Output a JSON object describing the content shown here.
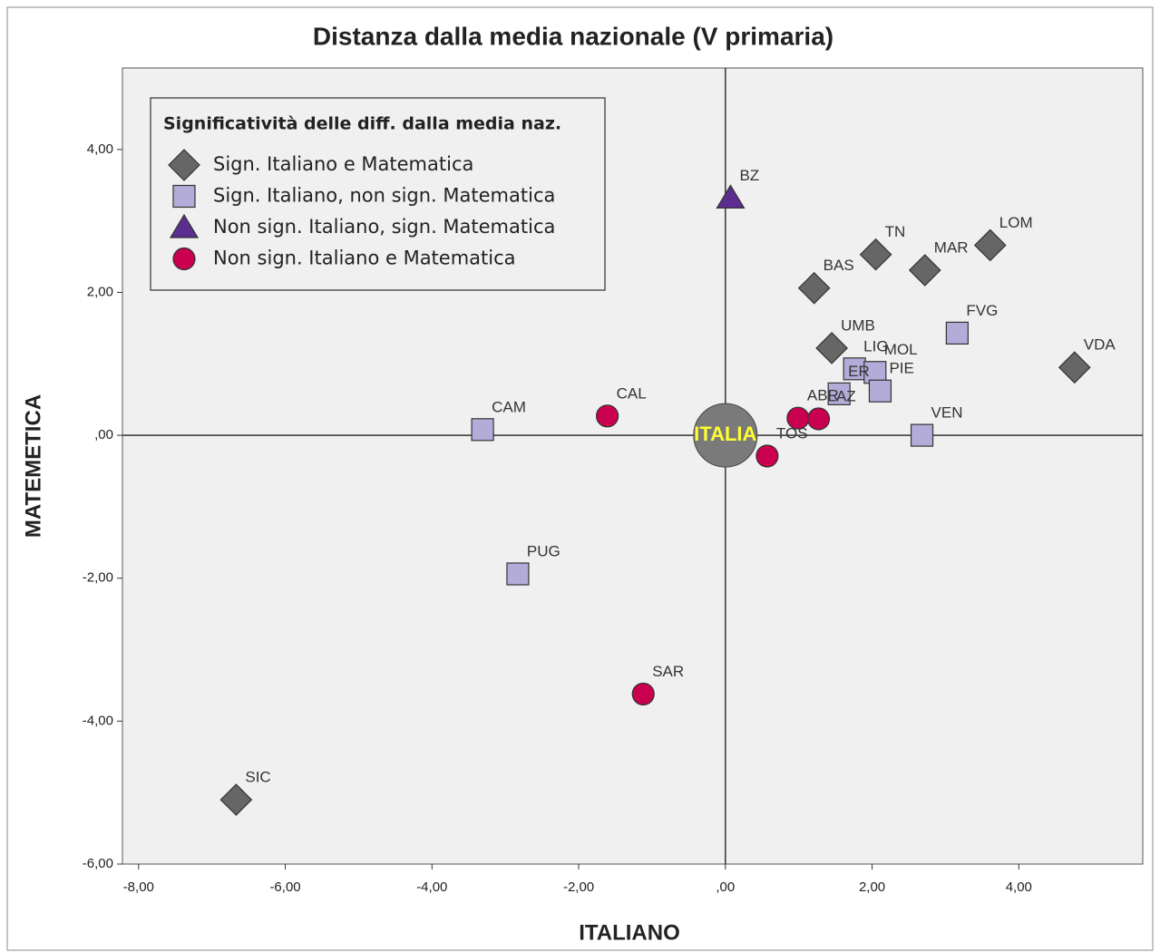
{
  "chart_data": {
    "type": "scatter",
    "title": "Distanza dalla media nazionale (V primaria)",
    "x_label": "ITALIANO",
    "y_label": "MATEMETICA",
    "legend_title": "Significatività delle diff. dalla media naz.",
    "xlim": [
      -8.22,
      5.69
    ],
    "ylim": [
      -6.0,
      5.14
    ],
    "xticks": [
      {
        "value": -8,
        "label": "-8,00"
      },
      {
        "value": -6,
        "label": "-6,00"
      },
      {
        "value": -4,
        "label": "-4,00"
      },
      {
        "value": -2,
        "label": "-2,00"
      },
      {
        "value": 0,
        "label": ",00"
      },
      {
        "value": 2,
        "label": "2,00"
      },
      {
        "value": 4,
        "label": "4,00"
      }
    ],
    "yticks": [
      {
        "value": -6,
        "label": "-6,00"
      },
      {
        "value": -4,
        "label": "-4,00"
      },
      {
        "value": -2,
        "label": "-2,00"
      },
      {
        "value": 0,
        "label": ",00"
      },
      {
        "value": 2,
        "label": "2,00"
      },
      {
        "value": 4,
        "label": "4,00"
      }
    ],
    "reference": {
      "label": "ITALIA",
      "x": 0,
      "y": 0,
      "color": "#7a7a7a"
    },
    "series": [
      {
        "name": "Sign. Italiano e Matematica",
        "marker": "diamond",
        "color": "#666666",
        "labels": [
          "SIC",
          "BAS",
          "TN",
          "MAR",
          "LOM",
          "UMB",
          "VDA"
        ],
        "x": [
          -6.67,
          1.21,
          2.05,
          2.72,
          3.61,
          1.45,
          4.76
        ],
        "values": [
          -5.1,
          2.06,
          2.53,
          2.31,
          2.66,
          1.22,
          0.95
        ]
      },
      {
        "name": "Sign. Italiano, non sign. Matematica",
        "marker": "square",
        "color": "#b3acd9",
        "labels": [
          "CAM",
          "PUG",
          "FVG",
          "LIG",
          "MOL",
          "ER",
          "PIE",
          "VEN"
        ],
        "x": [
          -3.31,
          -2.83,
          3.16,
          1.76,
          2.04,
          1.55,
          2.11,
          2.68
        ],
        "values": [
          0.08,
          -1.94,
          1.43,
          0.93,
          0.88,
          0.58,
          0.62,
          0.0
        ]
      },
      {
        "name": "Non sign. Italiano, sign. Matematica",
        "marker": "triangle",
        "color": "#5b2d8e",
        "labels": [
          "BZ"
        ],
        "x": [
          0.07
        ],
        "values": [
          3.32
        ]
      },
      {
        "name": "Non sign. Italiano e Matematica",
        "marker": "circle",
        "color": "#c8004f",
        "labels": [
          "CAL",
          "SAR",
          "ABR",
          "LAZ",
          "TOS"
        ],
        "x": [
          -1.61,
          -1.12,
          0.99,
          1.27,
          0.57
        ],
        "values": [
          0.27,
          -3.62,
          0.24,
          0.23,
          -0.29
        ]
      }
    ]
  }
}
